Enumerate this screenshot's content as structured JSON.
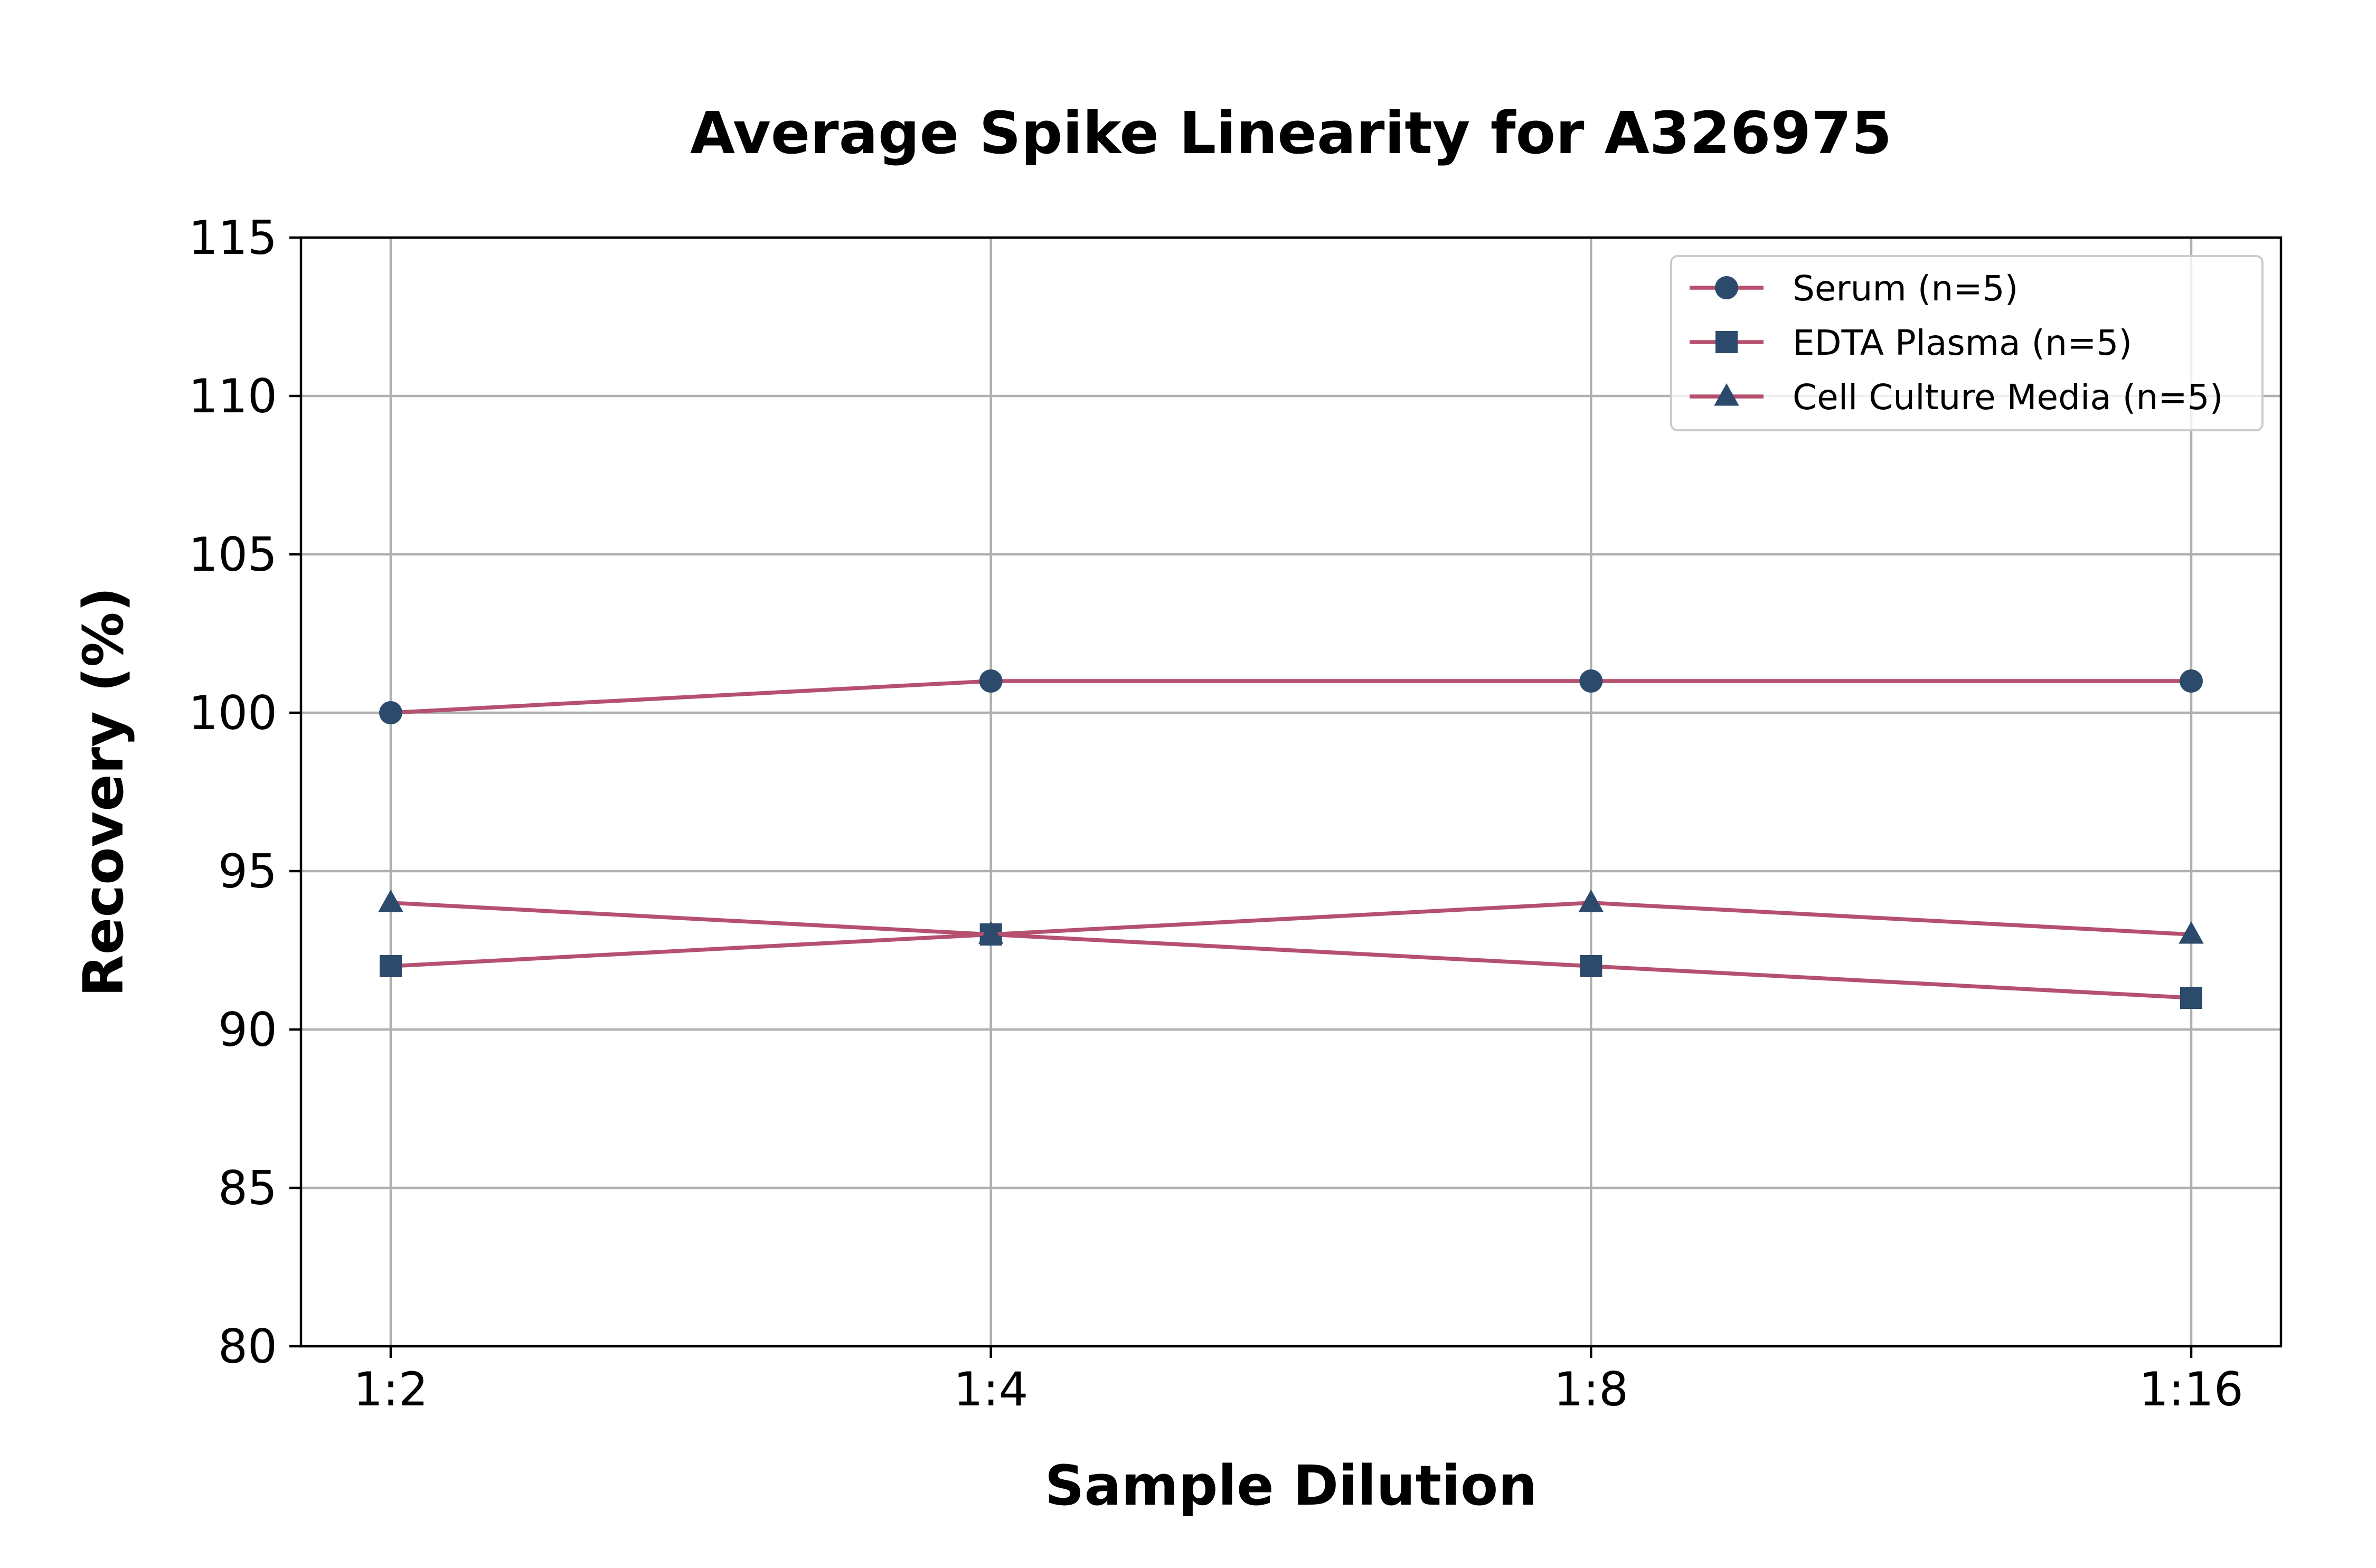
{
  "chart_data": {
    "type": "line",
    "title": "Average Spike Linearity for A326975",
    "xlabel": "Sample Dilution",
    "ylabel": "Recovery (%)",
    "categories": [
      "1:2",
      "1:4",
      "1:8",
      "1:16"
    ],
    "ylim": [
      80,
      115
    ],
    "yticks": [
      "80",
      "85",
      "90",
      "95",
      "100",
      "105",
      "110",
      "115"
    ],
    "grid": true,
    "legend_position": "top-right",
    "line_color": "#b5506f",
    "marker_color": "#2c4a6b",
    "series": [
      {
        "name": "Serum (n=5)",
        "marker": "circle",
        "values": [
          100,
          101,
          101,
          101
        ]
      },
      {
        "name": "EDTA Plasma (n=5)",
        "marker": "square",
        "values": [
          92,
          93,
          92,
          91
        ]
      },
      {
        "name": "Cell Culture Media (n=5)",
        "marker": "triangle",
        "values": [
          94,
          93,
          94,
          93
        ]
      }
    ]
  }
}
